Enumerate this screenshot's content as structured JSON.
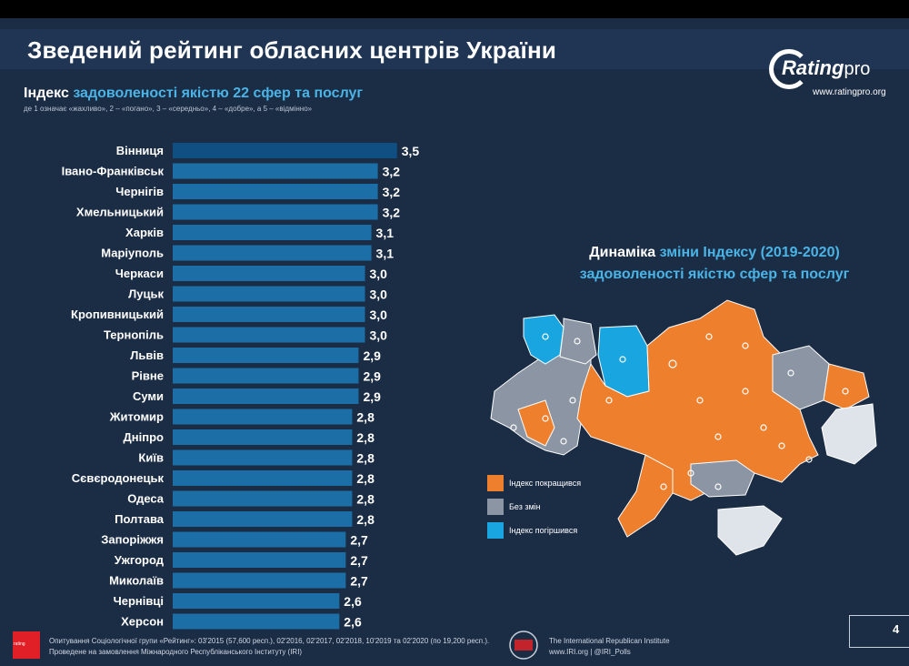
{
  "header": {
    "title": "Зведений рейтинг обласних центрів України"
  },
  "logo": {
    "brand": "Rating",
    "brand_suffix": "pro",
    "url": "www.ratingpro.org"
  },
  "left_panel": {
    "subtitle_bold": "Індекс",
    "subtitle_rest": "задоволеності якістю 22 сфер та послуг",
    "scale_note": "де 1 означає «жахливо», 2 – «погано», 3 – «середньо», 4 – «добре», а 5 – «відмінно»"
  },
  "chart_data": {
    "type": "bar",
    "orientation": "horizontal",
    "categories": [
      "Вінниця",
      "Івано-Франківськ",
      "Чернігів",
      "Хмельницький",
      "Харків",
      "Маріуполь",
      "Черкаси",
      "Луцьк",
      "Кропивницький",
      "Тернопіль",
      "Львів",
      "Рівне",
      "Суми",
      "Житомир",
      "Дніпро",
      "Київ",
      "Сєвєродонецьк",
      "Одеса",
      "Полтава",
      "Запоріжжя",
      "Ужгород",
      "Миколаїв",
      "Чернівці",
      "Херсон"
    ],
    "values": [
      3.5,
      3.2,
      3.2,
      3.2,
      3.1,
      3.1,
      3.0,
      3.0,
      3.0,
      3.0,
      2.9,
      2.9,
      2.9,
      2.8,
      2.8,
      2.8,
      2.8,
      2.8,
      2.8,
      2.7,
      2.7,
      2.7,
      2.6,
      2.6
    ],
    "value_labels": [
      "3,5",
      "3,2",
      "3,2",
      "3,2",
      "3,1",
      "3,1",
      "3,0",
      "3,0",
      "3,0",
      "3,0",
      "2,9",
      "2,9",
      "2,9",
      "2,8",
      "2,8",
      "2,8",
      "2,8",
      "2,8",
      "2,8",
      "2,7",
      "2,7",
      "2,7",
      "2,6",
      "2,6"
    ],
    "bar_color": "#1b6fa6",
    "top_bar_color": "#0f4f82",
    "title": "",
    "xlabel": "",
    "ylabel": ""
  },
  "map_panel": {
    "title_bold": "Динаміка",
    "title_rest_1": "зміни Індексу (2019-2020)",
    "title_rest_2": "задоволеності якістю сфер та послуг",
    "legend": [
      {
        "label": "Індекс покращився",
        "color": "#ee7f2d"
      },
      {
        "label": "Без змін",
        "color": "#8c95a3"
      },
      {
        "label": "Індекс погіршився",
        "color": "#19a6e0"
      }
    ]
  },
  "footer": {
    "logo_text": "rating",
    "line1": "Опитування Соціологічної групи «Рейтинг»: 03'2015 (57,600 респ.), 02'2016, 02'2017, 02'2018, 10'2019 та 02'2020 (по 19,200 респ.).",
    "line2": "Проведене на замовлення Міжнародного Республіканського Інституту (IRI)",
    "iri_line1": "The International Republican Institute",
    "iri_line2": "www.IRI.org | @IRI_Polls",
    "page_number": "4"
  }
}
